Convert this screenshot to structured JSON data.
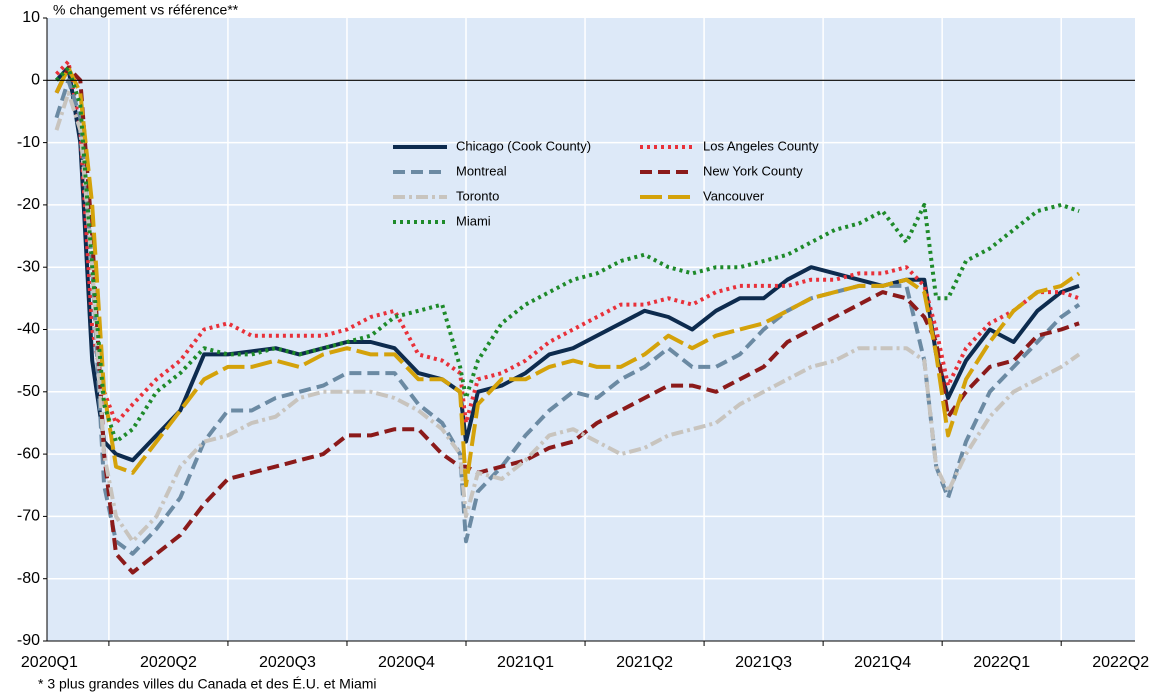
{
  "chart_data": {
    "type": "line",
    "y_label": "% changement vs référence**",
    "footnote": "* 3 plus grandes villes du Canada et des É.U. et Miami",
    "x": [
      0.56,
      0.66,
      0.76,
      0.86,
      0.96,
      1.06,
      1.2,
      1.4,
      1.6,
      1.8,
      2.0,
      2.2,
      2.4,
      2.6,
      2.8,
      3.0,
      3.2,
      3.4,
      3.6,
      3.8,
      3.95,
      4.0,
      4.1,
      4.3,
      4.5,
      4.7,
      4.9,
      5.1,
      5.3,
      5.5,
      5.7,
      5.9,
      6.1,
      6.3,
      6.5,
      6.7,
      6.9,
      7.1,
      7.3,
      7.5,
      7.7,
      7.85,
      7.95,
      8.05,
      8.2,
      8.4,
      8.6,
      8.8,
      9.0,
      9.15
    ],
    "series": [
      {
        "name": "Chicago (Cook County)",
        "color": "#0d2b4e",
        "style": "solid",
        "values": [
          0,
          2,
          -10,
          -45,
          -58,
          -60,
          -61,
          -57,
          -53,
          -44,
          -44,
          -43.5,
          -43,
          -44,
          -43,
          -42,
          -42,
          -43,
          -47,
          -48,
          -50,
          -58,
          -50,
          -49,
          -47,
          -44,
          -43,
          -41,
          -39,
          -37,
          -38,
          -40,
          -37,
          -35,
          -35,
          -32,
          -30,
          -31,
          -32,
          -33,
          -32,
          -32,
          -44,
          -51,
          -45,
          -40,
          -42,
          -37,
          -34,
          -33
        ]
      },
      {
        "name": "Los Angeles County",
        "color": "#e8313a",
        "style": "dotted",
        "values": [
          1,
          3,
          -8,
          -40,
          -50,
          -55,
          -52,
          -48,
          -45,
          -40,
          -39,
          -41,
          -41,
          -41,
          -41,
          -40,
          -38,
          -37,
          -44,
          -45,
          -47,
          -55,
          -48,
          -47,
          -45,
          -42,
          -40,
          -38,
          -36,
          -36,
          -35,
          -36,
          -34,
          -33,
          -33,
          -33,
          -32,
          -32,
          -31,
          -31,
          -30,
          -33,
          -40,
          -49,
          -43,
          -39,
          -37,
          -34,
          -34,
          -35
        ]
      },
      {
        "name": "Montreal",
        "color": "#6b8aa3",
        "style": "dashed",
        "values": [
          -6,
          0,
          -6,
          -30,
          -65,
          -74,
          -76,
          -72,
          -67,
          -58,
          -53,
          -53,
          -51,
          -50,
          -49,
          -47,
          -47,
          -47,
          -52,
          -55,
          -60,
          -74,
          -66,
          -62,
          -57,
          -53,
          -50,
          -51,
          -48,
          -46,
          -43,
          -46,
          -46,
          -44,
          -40,
          -37,
          -35,
          -34,
          -33,
          -33,
          -33,
          -45,
          -62,
          -67,
          -58,
          -50,
          -46,
          -42,
          -38,
          -36
        ]
      },
      {
        "name": "New York County",
        "color": "#8b1a1a",
        "style": "dashed",
        "values": [
          -2,
          2,
          0,
          -25,
          -60,
          -76,
          -79,
          -76,
          -73,
          -68,
          -64,
          -63,
          -62,
          -61,
          -60,
          -57,
          -57,
          -56,
          -56,
          -60,
          -62,
          -62,
          -63,
          -62,
          -61,
          -59,
          -58,
          -55,
          -53,
          -51,
          -49,
          -49,
          -50,
          -48,
          -46,
          -42,
          -40,
          -38,
          -36,
          -34,
          -35,
          -38,
          -42,
          -54,
          -50,
          -46,
          -45,
          -41,
          -40,
          -39
        ]
      },
      {
        "name": "Toronto",
        "color": "#c8c4be",
        "style": "dashdot",
        "values": [
          -8,
          -2,
          -8,
          -30,
          -60,
          -70,
          -74,
          -70,
          -62,
          -58,
          -57,
          -55,
          -54,
          -51,
          -50,
          -50,
          -50,
          -51,
          -53,
          -56,
          -60,
          -70,
          -63,
          -64,
          -61,
          -57,
          -56,
          -58,
          -60,
          -59,
          -57,
          -56,
          -55,
          -52,
          -50,
          -48,
          -46,
          -45,
          -43,
          -43,
          -43,
          -45,
          -62,
          -66,
          -60,
          -54,
          -50,
          -48,
          -46,
          -44
        ]
      },
      {
        "name": "Vancouver",
        "color": "#d4a20a",
        "style": "longdash",
        "values": [
          -2,
          2,
          -2,
          -20,
          -50,
          -62,
          -63,
          -58,
          -53,
          -48,
          -46,
          -46,
          -45,
          -46,
          -44,
          -43,
          -44,
          -44,
          -48,
          -48,
          -50,
          -65,
          -52,
          -48,
          -48,
          -46,
          -45,
          -46,
          -46,
          -44,
          -41,
          -43,
          -41,
          -40,
          -39,
          -37,
          -35,
          -34,
          -33,
          -33,
          -32,
          -34,
          -44,
          -57,
          -48,
          -42,
          -37,
          -34,
          -33,
          -31
        ]
      },
      {
        "name": "Miami",
        "color": "#1e8a2a",
        "style": "dotted",
        "values": [
          0,
          2,
          -4,
          -30,
          -52,
          -58,
          -56,
          -50,
          -47,
          -43,
          -44,
          -44,
          -43,
          -44,
          -43,
          -42,
          -41,
          -38,
          -37,
          -36,
          -46,
          -51,
          -45,
          -39,
          -36,
          -34,
          -32,
          -31,
          -29,
          -28,
          -30,
          -31,
          -30,
          -30,
          -29,
          -28,
          -26,
          -24,
          -23,
          -21,
          -26,
          -20,
          -35,
          -35,
          -29,
          -27,
          -24,
          -21,
          -20,
          -21
        ]
      }
    ],
    "xlim": [
      0.48,
      9.62
    ],
    "xticks": [
      {
        "value": 0.5,
        "label": "2020Q1"
      },
      {
        "value": 1.5,
        "label": "2020Q2"
      },
      {
        "value": 2.5,
        "label": "2020Q3"
      },
      {
        "value": 3.5,
        "label": "2020Q4"
      },
      {
        "value": 4.5,
        "label": "2021Q1"
      },
      {
        "value": 5.5,
        "label": "2021Q2"
      },
      {
        "value": 6.5,
        "label": "2021Q3"
      },
      {
        "value": 7.5,
        "label": "2021Q4"
      },
      {
        "value": 8.5,
        "label": "2022Q1"
      },
      {
        "value": 9.5,
        "label": "2022Q2"
      }
    ],
    "ylim": [
      -90,
      10
    ],
    "yticks": [
      10,
      0,
      -10,
      -20,
      -30,
      -40,
      -50,
      -60,
      -70,
      -80,
      -90
    ],
    "grid": true,
    "legend_position": "center"
  }
}
